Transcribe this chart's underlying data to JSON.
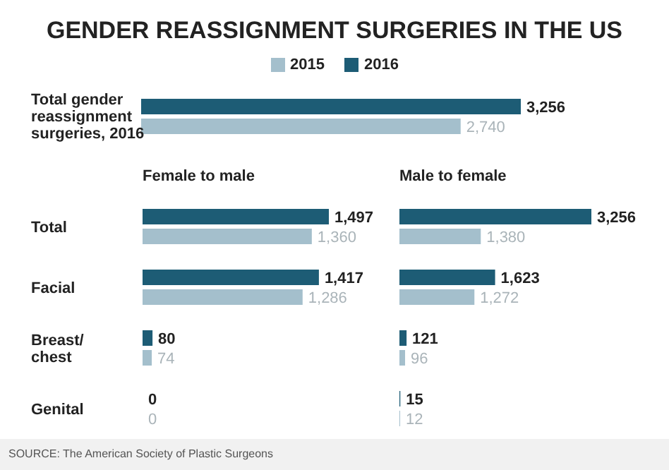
{
  "chart_data": [
    {
      "type": "bar",
      "orientation": "horizontal",
      "title": "GENDER REASSIGNMENT SURGERIES IN THE US",
      "legend": "top",
      "categories": [
        "Total gender reassignment surgeries, 2016"
      ],
      "series": [
        {
          "name": "2016",
          "color": "#1d5c75",
          "values": [
            3256
          ],
          "value_labels": [
            "3,256"
          ]
        },
        {
          "name": "2015",
          "color": "#a4bfcc",
          "values": [
            2740
          ],
          "value_labels": [
            "2,740"
          ]
        }
      ]
    },
    {
      "type": "bar",
      "orientation": "horizontal",
      "title": "Female to male",
      "categories": [
        "Total",
        "Facial",
        "Breast/chest",
        "Genital"
      ],
      "series": [
        {
          "color": "#1d5c75",
          "values": [
            1497,
            1417,
            80,
            0
          ],
          "value_labels": [
            "1,497",
            "1,417",
            "80",
            "0"
          ]
        },
        {
          "color": "#a4bfcc",
          "values": [
            1360,
            1286,
            74,
            0
          ],
          "value_labels": [
            "1,360",
            "1,286",
            "74",
            "0"
          ]
        }
      ]
    },
    {
      "type": "bar",
      "orientation": "horizontal",
      "title": "Male to female",
      "categories": [
        null,
        null,
        null,
        null
      ],
      "series": [
        {
          "color": "#1d5c75",
          "values": [
            3256,
            1623,
            121,
            15
          ],
          "value_labels": [
            "3,256",
            "1,623",
            "121",
            "15"
          ]
        },
        {
          "color": "#a4bfcc",
          "values": [
            1380,
            1272,
            96,
            12
          ],
          "value_labels": [
            "1,380",
            "1,272",
            "96",
            "12"
          ]
        }
      ],
      "annotations": [
        "SOURCE: The American Society of Plastic Surgeons"
      ]
    }
  ]
}
